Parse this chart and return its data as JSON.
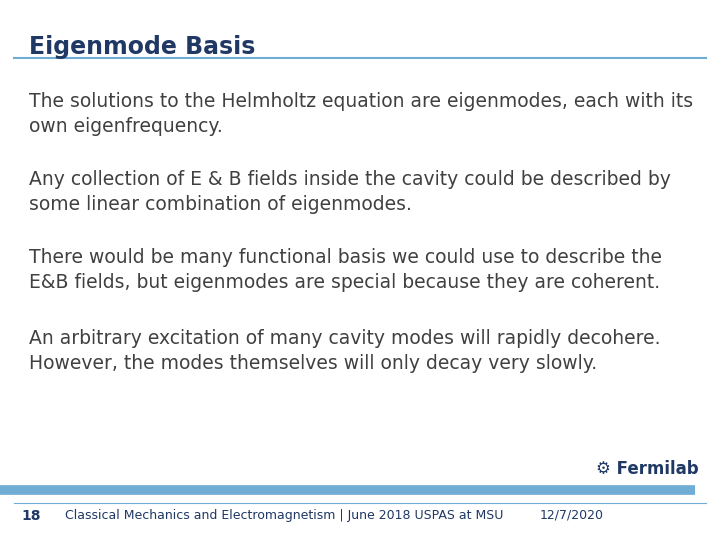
{
  "title": "Eigenmode Basis",
  "title_color": "#1F3864",
  "title_fontsize": 17,
  "background_color": "#FFFFFF",
  "body_text_color": "#404040",
  "body_fontsize": 13.5,
  "paragraphs": [
    "The solutions to the Helmholtz equation are eigenmodes, each with its\nown eigenfrequency.",
    "Any collection of E & B fields inside the cavity could be described by\nsome linear combination of eigenmodes.",
    "There would be many functional basis we could use to describe the\nE&B fields, but eigenmodes are special because they are coherent.",
    "An arbitrary excitation of many cavity modes will rapidly decohere.\nHowever, the modes themselves will only decay very slowly."
  ],
  "footer_left_num": "18",
  "footer_left_text": "Classical Mechanics and Electromagnetism | June 2018 USPAS at MSU",
  "footer_right_text": "12/7/2020",
  "footer_fermilab": "Fermilab",
  "footer_text_color": "#1F3864",
  "footer_fontsize": 9,
  "title_line_color": "#70ADD4",
  "footer_bar_color": "#70ADD4"
}
